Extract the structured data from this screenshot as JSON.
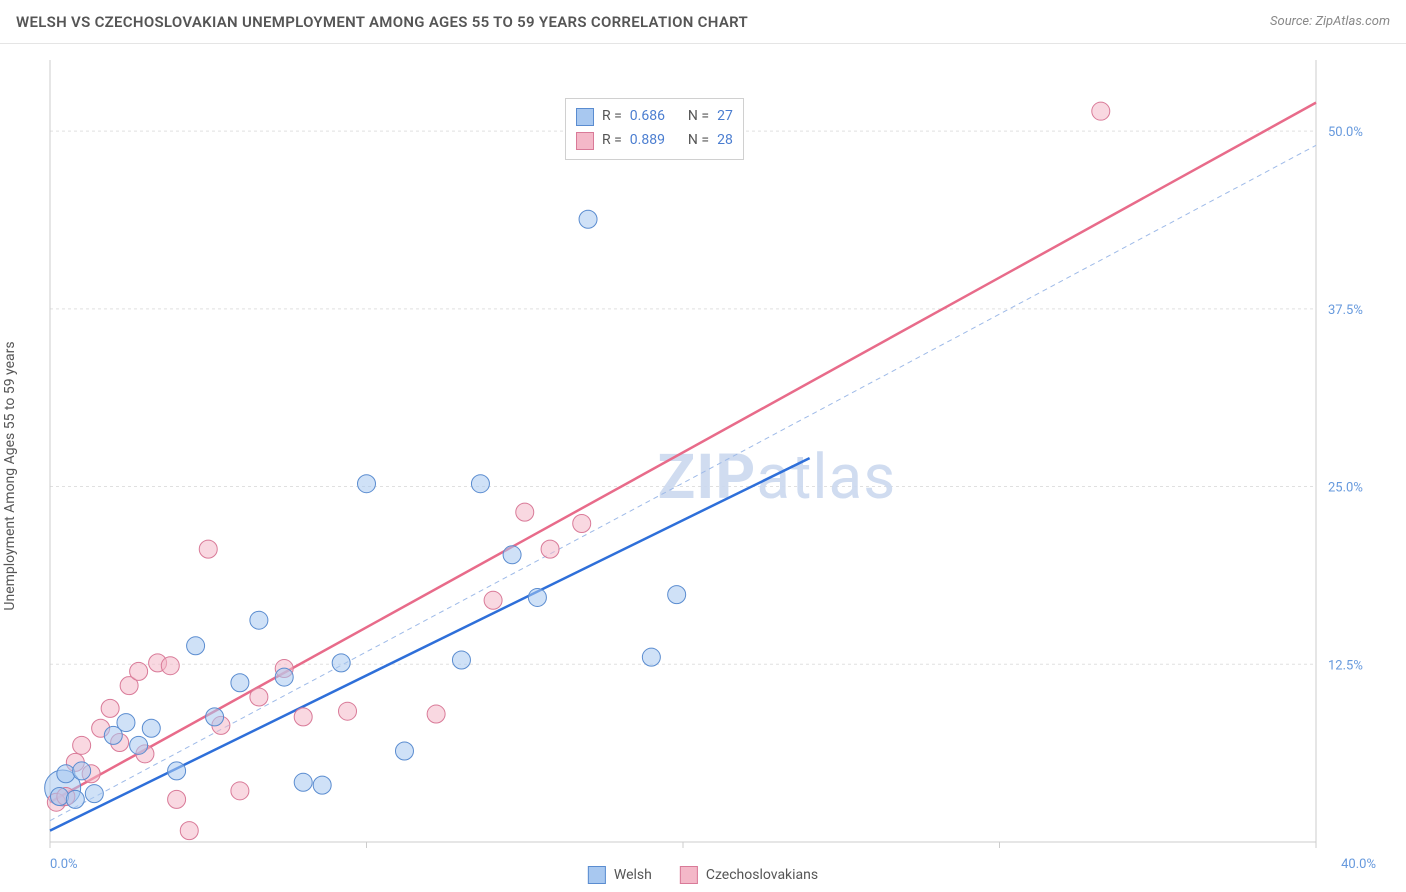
{
  "header": {
    "title": "WELSH VS CZECHOSLOVAKIAN UNEMPLOYMENT AMONG AGES 55 TO 59 YEARS CORRELATION CHART",
    "source_prefix": "Source: ",
    "source": "ZipAtlas.com"
  },
  "chart": {
    "type": "scatter",
    "ylabel": "Unemployment Among Ages 55 to 59 years",
    "watermark_a": "ZIP",
    "watermark_b": "atlas",
    "xlim": [
      0,
      40
    ],
    "ylim": [
      0,
      55
    ],
    "x_ticks": [
      0,
      10,
      20,
      30,
      40
    ],
    "x_tick_labels": [
      "0.0%",
      "",
      "",
      "",
      "40.0%"
    ],
    "y_ticks": [
      12.5,
      25,
      37.5,
      50
    ],
    "y_tick_labels": [
      "12.5%",
      "25.0%",
      "37.5%",
      "50.0%"
    ],
    "plot_bg": "#ffffff",
    "grid_color": "#e0e0e0",
    "colors": {
      "blue_fill": "#a8c8f0",
      "blue_stroke": "#5a8cd0",
      "pink_fill": "#f4b8c8",
      "pink_stroke": "#d97a98",
      "trend_blue": "#2e6fd9",
      "trend_pink": "#e86b8a",
      "diag": "#9ebae8",
      "tick_text": "#6699dd"
    },
    "marker_radius": 9,
    "marker_radius_big": 14,
    "legend": {
      "series1_label": "Welsh",
      "series2_label": "Czechoslovakians"
    },
    "stats": {
      "r_label": "R =",
      "n_label": "N =",
      "series1_r": "0.686",
      "series1_n": "27",
      "series2_r": "0.889",
      "series2_n": "28"
    },
    "trend_blue_line": {
      "x1": 0,
      "y1": 0.8,
      "x2": 24,
      "y2": 27
    },
    "trend_pink_line": {
      "x1": 0,
      "y1": 2.8,
      "x2": 40,
      "y2": 52
    },
    "diag_line": {
      "x1": 0,
      "y1": 1.5,
      "x2": 40,
      "y2": 49
    },
    "welsh_points": [
      [
        0.3,
        3.2
      ],
      [
        0.5,
        4.8
      ],
      [
        0.8,
        3.0
      ],
      [
        1.0,
        5.0
      ],
      [
        1.4,
        3.4
      ],
      [
        2.0,
        7.5
      ],
      [
        2.4,
        8.4
      ],
      [
        2.8,
        6.8
      ],
      [
        3.2,
        8.0
      ],
      [
        4.0,
        5.0
      ],
      [
        4.6,
        13.8
      ],
      [
        5.2,
        8.8
      ],
      [
        6.0,
        11.2
      ],
      [
        6.6,
        15.6
      ],
      [
        7.4,
        11.6
      ],
      [
        8.0,
        4.2
      ],
      [
        8.6,
        4.0
      ],
      [
        9.2,
        12.6
      ],
      [
        10.0,
        25.2
      ],
      [
        11.2,
        6.4
      ],
      [
        13.0,
        12.8
      ],
      [
        13.6,
        25.2
      ],
      [
        14.6,
        20.2
      ],
      [
        15.4,
        17.2
      ],
      [
        17.0,
        43.8
      ],
      [
        19.0,
        13.0
      ],
      [
        19.8,
        17.4
      ]
    ],
    "czech_points": [
      [
        0.2,
        2.8
      ],
      [
        0.5,
        3.2
      ],
      [
        0.8,
        5.6
      ],
      [
        1.0,
        6.8
      ],
      [
        1.3,
        4.8
      ],
      [
        1.6,
        8.0
      ],
      [
        1.9,
        9.4
      ],
      [
        2.2,
        7.0
      ],
      [
        2.5,
        11.0
      ],
      [
        2.8,
        12.0
      ],
      [
        3.0,
        6.2
      ],
      [
        3.4,
        12.6
      ],
      [
        3.8,
        12.4
      ],
      [
        4.0,
        3.0
      ],
      [
        4.4,
        0.8
      ],
      [
        5.0,
        20.6
      ],
      [
        5.4,
        8.2
      ],
      [
        6.0,
        3.6
      ],
      [
        6.6,
        10.2
      ],
      [
        7.4,
        12.2
      ],
      [
        8.0,
        8.8
      ],
      [
        9.4,
        9.2
      ],
      [
        12.2,
        9.0
      ],
      [
        14.0,
        17.0
      ],
      [
        15.0,
        23.2
      ],
      [
        15.8,
        20.6
      ],
      [
        16.8,
        22.4
      ],
      [
        33.2,
        51.4
      ]
    ]
  }
}
